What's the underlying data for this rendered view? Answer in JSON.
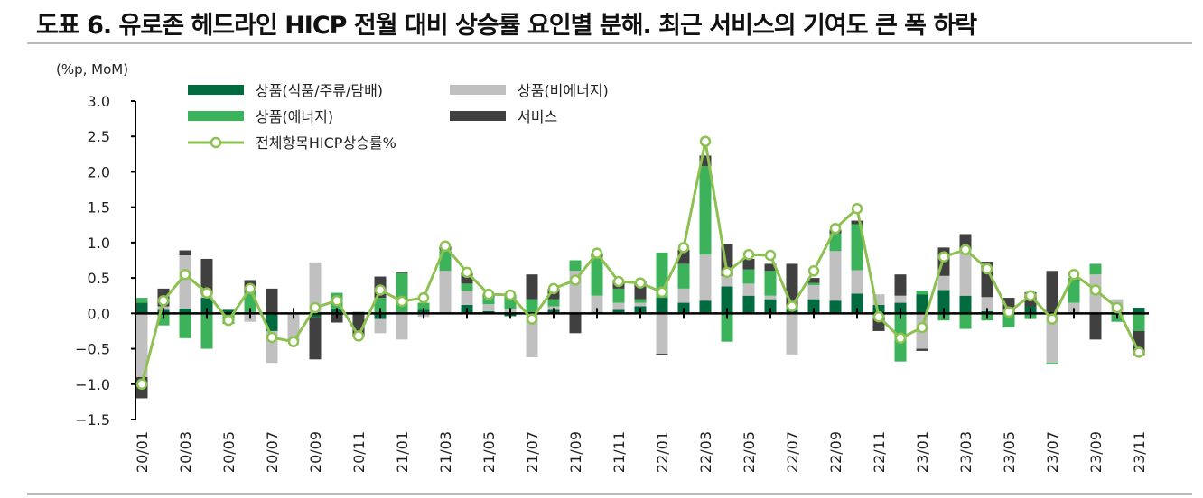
{
  "chart_data": {
    "type": "bar",
    "stacked": true,
    "title": "도표 6. 유로존 헤드라인 HICP 전월 대비 상승률 요인별 분해. 최근 서비스의 기여도 큰 폭 하락",
    "unit_label": "(%p, MoM)",
    "ylim": [
      -1.5,
      3.0
    ],
    "yticks": [
      "3.0",
      "2.5",
      "2.0",
      "1.5",
      "1.0",
      "0.5",
      "0.0",
      "-0.5",
      "-1.0",
      "-1.5"
    ],
    "legend_placement": "top-left",
    "grid": false,
    "categories": [
      "20/01",
      "20/02",
      "20/03",
      "20/04",
      "20/05",
      "20/06",
      "20/07",
      "20/08",
      "20/09",
      "20/10",
      "20/11",
      "20/12",
      "21/01",
      "21/02",
      "21/03",
      "21/04",
      "21/05",
      "21/06",
      "21/07",
      "21/08",
      "21/09",
      "21/10",
      "21/11",
      "21/12",
      "22/01",
      "22/02",
      "22/03",
      "22/04",
      "22/05",
      "22/06",
      "22/07",
      "22/08",
      "22/09",
      "22/10",
      "22/11",
      "22/12",
      "23/01",
      "23/02",
      "23/03",
      "23/04",
      "23/05",
      "23/06",
      "23/07",
      "23/08",
      "23/09",
      "23/10",
      "23/11"
    ],
    "series": [
      {
        "name": "상품(식품/주류/담배)",
        "color": "#006b3f",
        "values": [
          0.15,
          0.05,
          0.07,
          0.22,
          0.05,
          0.02,
          -0.25,
          0,
          -0.05,
          0.07,
          0.02,
          -0.08,
          0.02,
          0.05,
          0.0,
          0.12,
          0.03,
          -0.04,
          0,
          0.05,
          0,
          0.02,
          0.05,
          0.1,
          0.22,
          0.15,
          0.18,
          0.38,
          0.25,
          0.2,
          0.05,
          0.2,
          0.18,
          0.28,
          0.12,
          0.15,
          0.27,
          0.33,
          0.25,
          0.03,
          0.0,
          0.1,
          0,
          0,
          0,
          0,
          0.08
        ]
      },
      {
        "name": "상품(비에너지)",
        "color": "#c0c0c0",
        "values": [
          -0.9,
          0.05,
          0.75,
          0.05,
          0,
          -0.12,
          -0.45,
          -0.38,
          0.72,
          0,
          0,
          -0.2,
          -0.37,
          -0.05,
          0.6,
          0.2,
          0.1,
          0.06,
          -0.62,
          0.05,
          0.6,
          0.23,
          0.1,
          0.05,
          -0.57,
          0.2,
          0.65,
          0.15,
          0.17,
          0.05,
          -0.58,
          0.2,
          0.7,
          0.33,
          0.15,
          0.1,
          -0.5,
          0.2,
          0.65,
          0.2,
          0.02,
          0,
          -0.7,
          0.15,
          0.55,
          0.2,
          0
        ]
      },
      {
        "name": "상품(에너지)",
        "color": "#3cb35a",
        "values": [
          0.07,
          -0.17,
          -0.35,
          -0.5,
          -0.15,
          0.28,
          0,
          0,
          0,
          0.22,
          0,
          0.22,
          0.55,
          0.1,
          0.3,
          0.1,
          0.1,
          0.18,
          0.2,
          0.1,
          0.15,
          0.55,
          0.2,
          0.05,
          0.64,
          0.35,
          1.25,
          -0.4,
          0.2,
          0.35,
          0.05,
          0.03,
          0.25,
          0.65,
          -0.05,
          -0.68,
          0.05,
          -0.1,
          -0.22,
          -0.1,
          -0.2,
          -0.08,
          -0.02,
          0.35,
          0.15,
          -0.12,
          -0.25
        ]
      },
      {
        "name": "서비스",
        "color": "#404040",
        "values": [
          -0.3,
          0.25,
          0.07,
          0.5,
          0,
          0.17,
          0.35,
          0,
          -0.6,
          -0.13,
          -0.33,
          0.3,
          0.02,
          0,
          0.05,
          0.15,
          0.05,
          0.02,
          0.35,
          0.15,
          -0.28,
          0.05,
          0.12,
          0.25,
          -0.02,
          0.2,
          0.15,
          0.45,
          0.15,
          0.1,
          0.6,
          0.07,
          0.05,
          0.05,
          -0.2,
          0.3,
          -0.03,
          0.4,
          0.22,
          0.5,
          0.2,
          0.2,
          0.6,
          0,
          -0.37,
          0,
          -0.35
        ]
      }
    ],
    "line": {
      "name": "전체항목HICP상승률%",
      "color": "#8dc152",
      "values": [
        -1.0,
        0.18,
        0.55,
        0.29,
        -0.1,
        0.35,
        -0.34,
        -0.4,
        0.08,
        0.18,
        -0.32,
        0.33,
        0.17,
        0.22,
        0.95,
        0.58,
        0.27,
        0.26,
        -0.08,
        0.35,
        0.47,
        0.85,
        0.45,
        0.43,
        0.3,
        0.93,
        2.43,
        0.58,
        0.83,
        0.82,
        0.1,
        0.6,
        1.2,
        1.48,
        -0.05,
        -0.35,
        -0.2,
        0.8,
        0.9,
        0.63,
        0.02,
        0.25,
        -0.08,
        0.55,
        0.33,
        0.08,
        -0.55
      ]
    }
  }
}
